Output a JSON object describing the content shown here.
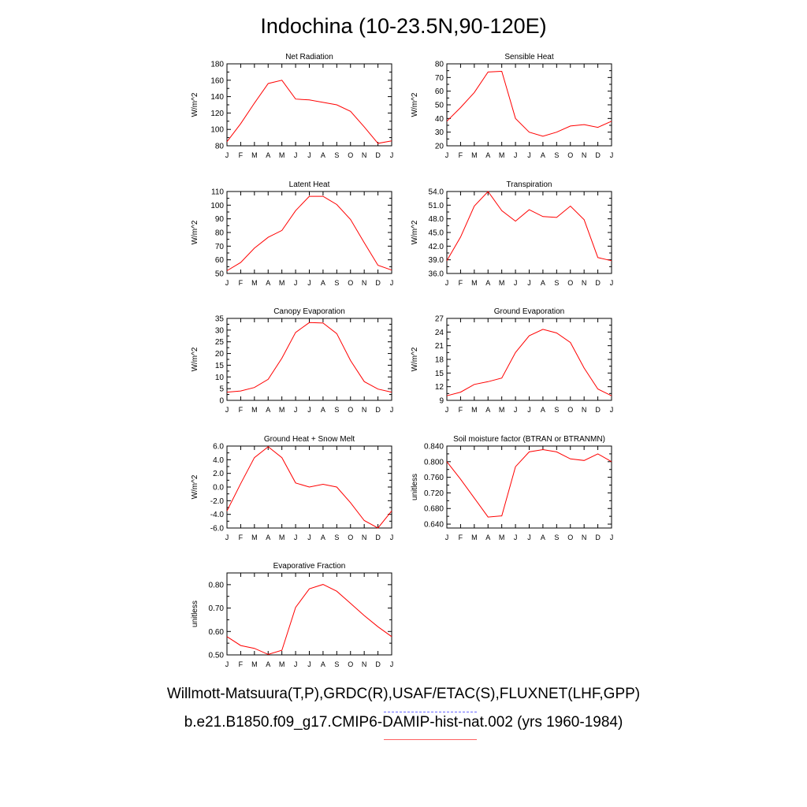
{
  "title": "Indochina (10-23.5N,90-120E)",
  "month_labels": [
    "J",
    "F",
    "M",
    "A",
    "M",
    "J",
    "J",
    "A",
    "S",
    "O",
    "N",
    "D",
    "J"
  ],
  "legend": [
    {
      "label": "Willmott-Matsuura(T,P),GRDC(R),USAF/ETAC(S),FLUXNET(LHF,GPP)",
      "color": "#6a6aff",
      "style": "dashed"
    },
    {
      "label": "b.e21.B1850.f09_g17.CMIP6-DAMIP-hist-nat.002 (yrs 1960-1984)",
      "color": "#ff6060",
      "style": "solid"
    }
  ],
  "series_color": "#ff0000",
  "chart_data": [
    {
      "type": "line",
      "title": "Net Radiation",
      "ylabel": "W/m^2",
      "ylim": [
        80,
        180
      ],
      "yticks": [
        "80",
        "100",
        "120",
        "140",
        "160",
        "180"
      ],
      "values": [
        85,
        107,
        132,
        156,
        160,
        137,
        136,
        133,
        130,
        122,
        103,
        83,
        86
      ]
    },
    {
      "type": "line",
      "title": "Sensible Heat",
      "ylabel": "W/m^2",
      "ylim": [
        20,
        80
      ],
      "yticks": [
        "20",
        "30",
        "40",
        "50",
        "60",
        "70",
        "80"
      ],
      "values": [
        38,
        48,
        59,
        74,
        74.5,
        40,
        30,
        27,
        30,
        34.5,
        35.5,
        33.5,
        38
      ]
    },
    {
      "type": "line",
      "title": "Latent Heat",
      "ylabel": "W/m^2",
      "ylim": [
        50,
        110
      ],
      "yticks": [
        "50",
        "60",
        "70",
        "80",
        "90",
        "100",
        "110"
      ],
      "values": [
        52,
        58,
        68.5,
        76.5,
        81.5,
        96,
        106.5,
        106.5,
        100.5,
        89.5,
        72.5,
        56,
        52.5
      ]
    },
    {
      "type": "line",
      "title": "Transpiration",
      "ylabel": "W/m^2",
      "ylim": [
        36,
        54
      ],
      "yticks": [
        "36.0",
        "39.0",
        "42.0",
        "45.0",
        "48.0",
        "51.0",
        "54.0"
      ],
      "values": [
        38.8,
        44,
        50.8,
        54,
        49.8,
        47.5,
        50,
        48.5,
        48.3,
        50.8,
        47.8,
        39.5,
        38.8
      ]
    },
    {
      "type": "line",
      "title": "Canopy Evaporation",
      "ylabel": "W/m^2",
      "ylim": [
        0,
        35
      ],
      "yticks": [
        "0",
        "5",
        "10",
        "15",
        "20",
        "25",
        "30",
        "35"
      ],
      "values": [
        3.5,
        4,
        5.5,
        9,
        18,
        29,
        33.2,
        33,
        28.5,
        17,
        8,
        4.8,
        3.5
      ]
    },
    {
      "type": "line",
      "title": "Ground Evaporation",
      "ylabel": "W/m^2",
      "ylim": [
        9,
        27
      ],
      "yticks": [
        "9",
        "12",
        "15",
        "18",
        "21",
        "24",
        "27"
      ],
      "values": [
        10,
        10.8,
        12.5,
        13.1,
        13.9,
        19.5,
        23.2,
        24.6,
        23.8,
        21.7,
        16.1,
        11.5,
        10
      ]
    },
    {
      "type": "line",
      "title": "Ground Heat + Snow Melt",
      "ylabel": "W/m^2",
      "ylim": [
        -6,
        6
      ],
      "yticks": [
        "-6.0",
        "-4.0",
        "-2.0",
        "0.0",
        "2.0",
        "4.0",
        "6.0"
      ],
      "values": [
        -3.5,
        0.5,
        4.3,
        5.9,
        4.3,
        0.6,
        0,
        0.4,
        0,
        -2.3,
        -4.9,
        -6,
        -3.5
      ]
    },
    {
      "type": "line",
      "title": "Soil moisture factor (BTRAN or BTRANMN)",
      "ylabel": "unitless",
      "ylim": [
        0.63,
        0.84
      ],
      "yticks": [
        "0.640",
        "0.680",
        "0.720",
        "0.760",
        "0.800",
        "0.840"
      ],
      "values": [
        0.8,
        0.755,
        0.707,
        0.658,
        0.661,
        0.787,
        0.825,
        0.831,
        0.825,
        0.807,
        0.803,
        0.82,
        0.8
      ]
    },
    {
      "type": "line",
      "title": "Evaporative Fraction",
      "ylabel": "unitless",
      "ylim": [
        0.5,
        0.85
      ],
      "yticks": [
        "0.50",
        "0.60",
        "0.70",
        "0.80"
      ],
      "values": [
        0.578,
        0.54,
        0.528,
        0.502,
        0.52,
        0.703,
        0.782,
        0.801,
        0.772,
        0.72,
        0.668,
        0.62,
        0.578
      ]
    }
  ]
}
